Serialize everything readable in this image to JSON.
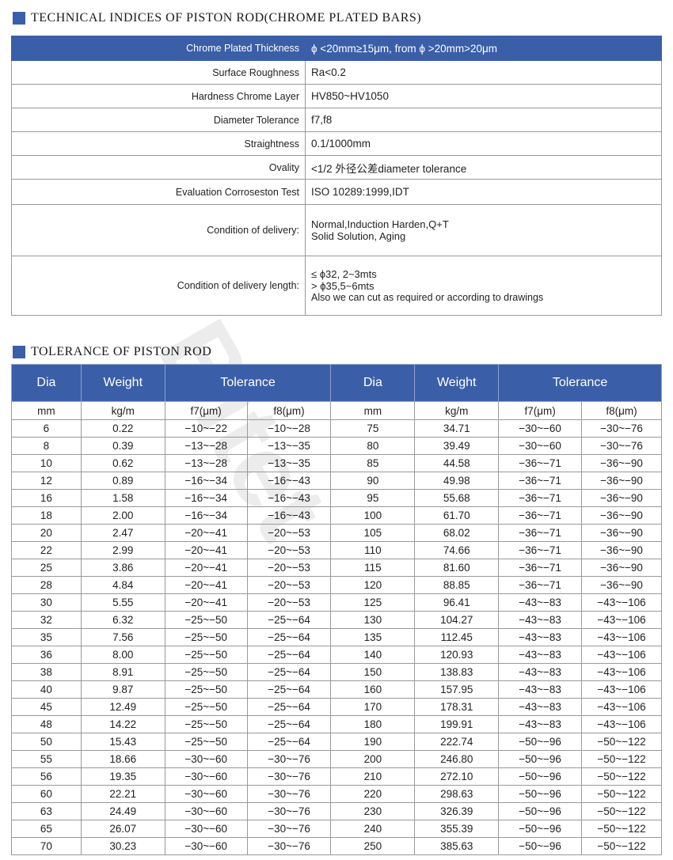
{
  "technical": {
    "title": "TECHNICAL INDICES OF PISTON ROD(CHROME PLATED BARS)",
    "rows": [
      {
        "label": "Chrome Plated Thickness",
        "value": [
          "ϕ <20mm≥15μm,  from ϕ >20mm>20μm"
        ]
      },
      {
        "label": "Surface Roughness",
        "value": [
          "Ra<0.2"
        ]
      },
      {
        "label": "Hardness Chrome Layer",
        "value": [
          "HV850~HV1050"
        ]
      },
      {
        "label": "Diameter Tolerance",
        "value": [
          "f7,f8"
        ]
      },
      {
        "label": "Straightness",
        "value": [
          "0.1/1000mm"
        ]
      },
      {
        "label": "Ovality",
        "value": [
          "<1/2 外径公差diameter tolerance"
        ]
      },
      {
        "label": "Evaluation Corroseston Test",
        "value": [
          "ISO 10289:1999,IDT"
        ]
      },
      {
        "label": "Condition of delivery:",
        "value": [
          "Normal,Induction Harden,Q+T",
          "Solid Solution, Aging"
        ]
      },
      {
        "label": "Condition of delivery length:",
        "value": [
          "≤ ϕ32, 2~3mts",
          "> ϕ35,5~6mts",
          "Also we can cut as required or according to drawings"
        ]
      }
    ]
  },
  "tolerance": {
    "title": "TOLERANCE  OF  PISTON  ROD",
    "headers": [
      "Dia",
      "Weight",
      "Tolerance",
      "Dia",
      "Weight",
      "Tolerance"
    ],
    "units": [
      "mm",
      "kg/m",
      "f7(μm)",
      "f8(μm)",
      "mm",
      "kg/m",
      "f7(μm)",
      "f8(μm)"
    ],
    "rows": [
      [
        "6",
        "0.22",
        "−10~−22",
        "−10~−28",
        "75",
        "34.71",
        "−30~−60",
        "−30~−76"
      ],
      [
        "8",
        "0.39",
        "−13~−28",
        "−13~−35",
        "80",
        "39.49",
        "−30~−60",
        "−30~−76"
      ],
      [
        "10",
        "0.62",
        "−13~−28",
        "−13~−35",
        "85",
        "44.58",
        "−36~−71",
        "−36~−90"
      ],
      [
        "12",
        "0.89",
        "−16~−34",
        "−16~−43",
        "90",
        "49.98",
        "−36~−71",
        "−36~−90"
      ],
      [
        "16",
        "1.58",
        "−16~−34",
        "−16~−43",
        "95",
        "55.68",
        "−36~−71",
        "−36~−90"
      ],
      [
        "18",
        "2.00",
        "−16~−34",
        "−16~−43",
        "100",
        "61.70",
        "−36~−71",
        "−36~−90"
      ],
      [
        "20",
        "2.47",
        "−20~−41",
        "−20~−53",
        "105",
        "68.02",
        "−36~−71",
        "−36~−90"
      ],
      [
        "22",
        "2.99",
        "−20~−41",
        "−20~−53",
        "110",
        "74.66",
        "−36~−71",
        "−36~−90"
      ],
      [
        "25",
        "3.86",
        "−20~−41",
        "−20~−53",
        "115",
        "81.60",
        "−36~−71",
        "−36~−90"
      ],
      [
        "28",
        "4.84",
        "−20~−41",
        "−20~−53",
        "120",
        "88.85",
        "−36~−71",
        "−36~−90"
      ],
      [
        "30",
        "5.55",
        "−20~−41",
        "−20~−53",
        "125",
        "96.41",
        "−43~−83",
        "−43~−106"
      ],
      [
        "32",
        "6.32",
        "−25~−50",
        "−25~−64",
        "130",
        "104.27",
        "−43~−83",
        "−43~−106"
      ],
      [
        "35",
        "7.56",
        "−25~−50",
        "−25~−64",
        "135",
        "112.45",
        "−43~−83",
        "−43~−106"
      ],
      [
        "36",
        "8.00",
        "−25~−50",
        "−25~−64",
        "140",
        "120.93",
        "−43~−83",
        "−43~−106"
      ],
      [
        "38",
        "8.91",
        "−25~−50",
        "−25~−64",
        "150",
        "138.83",
        "−43~−83",
        "−43~−106"
      ],
      [
        "40",
        "9.87",
        "−25~−50",
        "−25~−64",
        "160",
        "157.95",
        "−43~−83",
        "−43~−106"
      ],
      [
        "45",
        "12.49",
        "−25~−50",
        "−25~−64",
        "170",
        "178.31",
        "−43~−83",
        "−43~−106"
      ],
      [
        "48",
        "14.22",
        "−25~−50",
        "−25~−64",
        "180",
        "199.91",
        "−43~−83",
        "−43~−106"
      ],
      [
        "50",
        "15.43",
        "−25~−50",
        "−25~−64",
        "190",
        "222.74",
        "−50~−96",
        "−50~−122"
      ],
      [
        "55",
        "18.66",
        "−30~−60",
        "−30~−76",
        "200",
        "246.80",
        "−50~−96",
        "−50~−122"
      ],
      [
        "56",
        "19.35",
        "−30~−60",
        "−30~−76",
        "210",
        "272.10",
        "−50~−96",
        "−50~−122"
      ],
      [
        "60",
        "22.21",
        "−30~−60",
        "−30~−76",
        "220",
        "298.63",
        "−50~−96",
        "−50~−122"
      ],
      [
        "63",
        "24.49",
        "−30~−60",
        "−30~−76",
        "230",
        "326.39",
        "−50~−96",
        "−50~−122"
      ],
      [
        "65",
        "26.07",
        "−30~−60",
        "−30~−76",
        "240",
        "355.39",
        "−50~−96",
        "−50~−122"
      ],
      [
        "70",
        "30.23",
        "−30~−60",
        "−30~−76",
        "250",
        "385.63",
        "−50~−96",
        "−50~−122"
      ]
    ]
  },
  "watermark": "Bitet",
  "colors": {
    "accent": "#3b5ea8"
  }
}
